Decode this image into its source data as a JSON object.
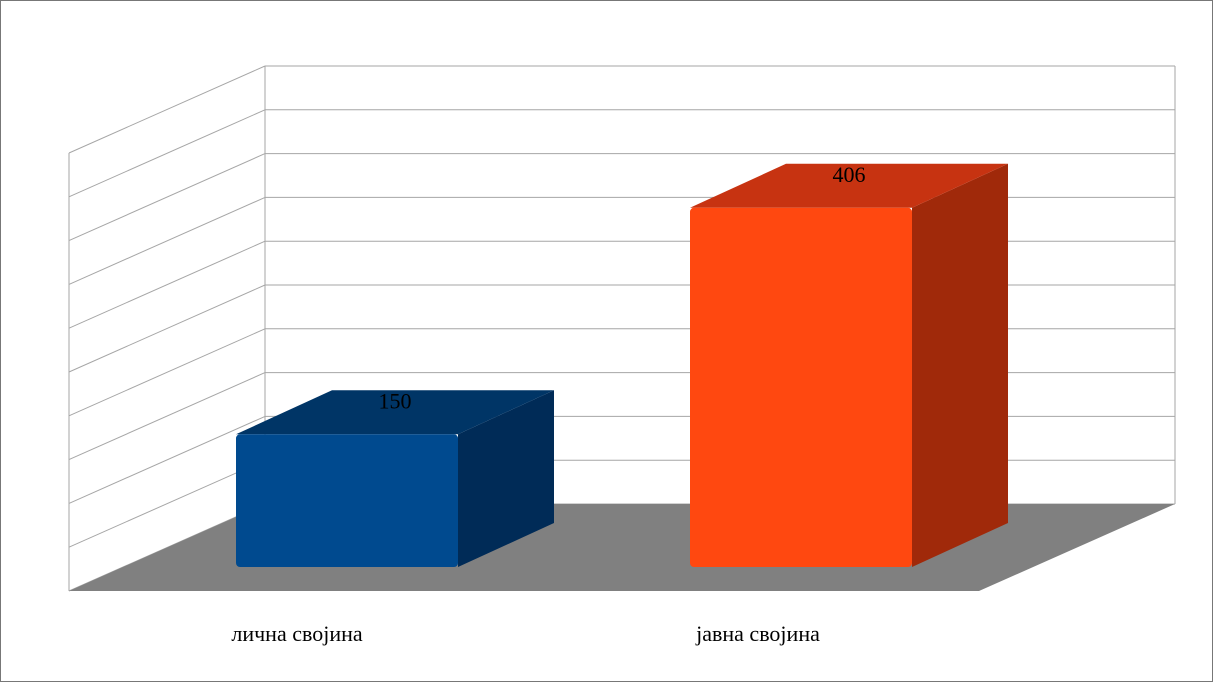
{
  "chart_data": {
    "type": "bar",
    "style": "3d-column",
    "categories": [
      "лична својина",
      "јавна својина"
    ],
    "values": [
      150,
      406
    ],
    "data_labels": [
      "150",
      "406"
    ],
    "colors": {
      "bar_front": [
        "#004a8f",
        "#ff4810"
      ],
      "bar_side": [
        "#002b57",
        "#a0290a"
      ],
      "bar_top": [
        "#003566",
        "#c73311"
      ],
      "floor": "#808080",
      "gridline": "#a6a6a6"
    },
    "ylim": [
      0,
      500
    ],
    "gridlines": 10,
    "grid": true,
    "legend": "none",
    "title": "",
    "xlabel": "",
    "ylabel": ""
  }
}
